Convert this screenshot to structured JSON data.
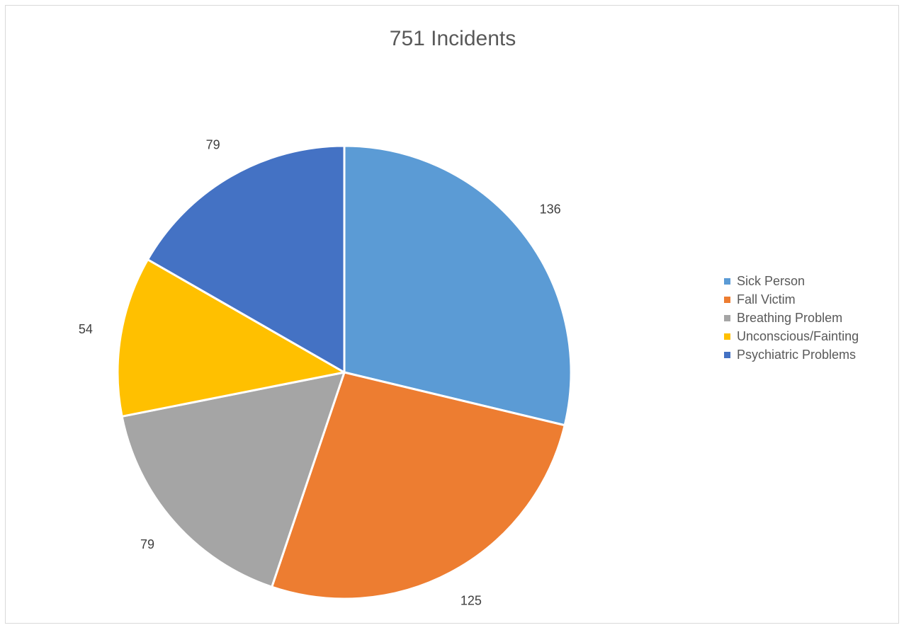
{
  "chart_data": {
    "type": "pie",
    "title": "751 Incidents",
    "categories": [
      "Sick Person",
      "Fall Victim",
      "Breathing Problem",
      "Unconscious/Fainting",
      "Psychiatric Problems"
    ],
    "values": [
      136,
      125,
      79,
      54,
      79
    ],
    "data_labels": [
      "136",
      "125",
      "79",
      "54",
      "79"
    ],
    "colors": [
      "#5B9BD5",
      "#ED7D31",
      "#A5A5A5",
      "#FFC000",
      "#4472C4"
    ],
    "start_angle": "12 o'clock",
    "direction": "clockwise",
    "legend_position": "right"
  }
}
